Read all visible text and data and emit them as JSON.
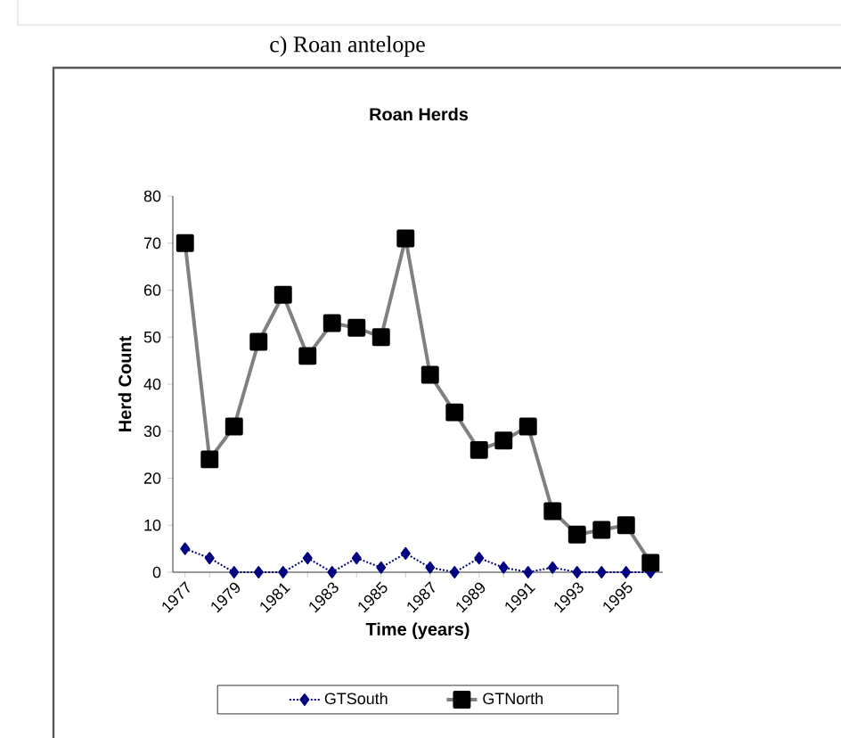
{
  "chart_data": {
    "type": "line",
    "title": "c) Roan antelope",
    "subtitle": "Roan Herds",
    "xlabel": "Time (years)",
    "ylabel": "Herd Count",
    "categories": [
      "1977",
      null,
      "1979",
      null,
      "1981",
      null,
      "1983",
      null,
      "1985",
      null,
      "1987",
      null,
      "1989",
      null,
      "1991",
      null,
      "1993",
      null,
      "1995",
      null
    ],
    "ylim": [
      0,
      80
    ],
    "yticks": [
      0,
      10,
      20,
      30,
      40,
      50,
      60,
      70,
      80
    ],
    "grid": false,
    "legend": "bottom",
    "series": [
      {
        "name": "GTSouth",
        "color": "#000080",
        "marker": "diamond",
        "line_style": "dotted",
        "values": [
          5,
          3,
          0,
          0,
          0,
          3,
          0,
          3,
          1,
          4,
          1,
          0,
          3,
          1,
          0,
          1,
          0,
          0,
          0,
          0
        ]
      },
      {
        "name": "GTNorth",
        "color": "#808080",
        "marker": "square",
        "line_style": "solid",
        "values": [
          70,
          24,
          31,
          49,
          59,
          46,
          53,
          52,
          50,
          71,
          42,
          34,
          26,
          28,
          31,
          13,
          8,
          9,
          10,
          2
        ]
      }
    ]
  }
}
